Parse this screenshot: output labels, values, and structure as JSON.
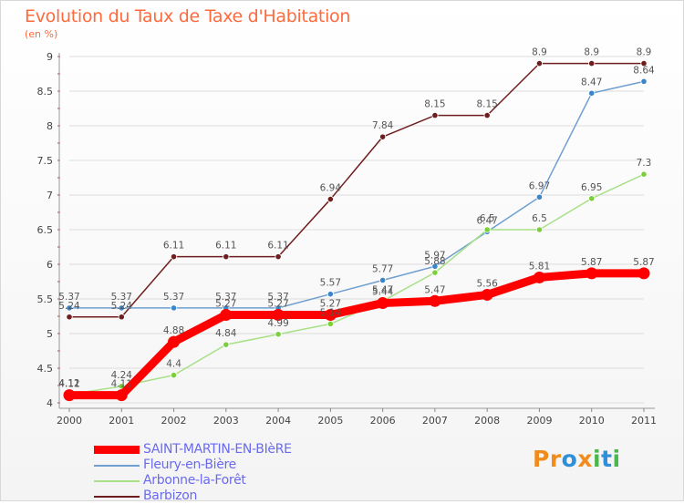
{
  "header": {
    "title": "Evolution du Taux de Taxe d'Habitation",
    "unit": "(en %)"
  },
  "logo": {
    "text": "Proxiti",
    "letters": [
      "P",
      "r",
      "o",
      "x",
      "i",
      "t",
      "i"
    ],
    "colors": [
      "#f08c1e",
      "#f08c1e",
      "#2f8fd8",
      "#f08c1e",
      "#4bb84b",
      "#2f8fd8",
      "#4bb84b"
    ]
  },
  "chart_data": {
    "type": "line",
    "title": "Evolution du Taux de Taxe d'Habitation",
    "ylabel": "(en %)",
    "xlabel": "",
    "x": [
      "2000",
      "2001",
      "2002",
      "2003",
      "2004",
      "2005",
      "2006",
      "2007",
      "2008",
      "2009",
      "2010",
      "2011"
    ],
    "ylim": [
      4,
      9
    ],
    "yticks": [
      "4",
      "4.5",
      "5",
      "5.5",
      "6",
      "6.5",
      "7",
      "7.5",
      "8",
      "8.5",
      "9"
    ],
    "grid": "horizontal",
    "legend_position": "bottom-left",
    "series": [
      {
        "name": "Barbizon",
        "color": "#6e1e1e",
        "marker": "#6e1e1e",
        "values": [
          5.24,
          5.24,
          6.11,
          6.11,
          6.11,
          6.94,
          7.84,
          8.15,
          8.15,
          8.9,
          8.9,
          8.9
        ],
        "labels": [
          "5.24",
          "5.24",
          "6.11",
          "6.11",
          "6.11",
          "6.94",
          "7.84",
          "8.15",
          "8.15",
          "8.9",
          "8.9",
          "8.9"
        ]
      },
      {
        "name": "Fleury-en-Bière",
        "color": "#6f9fd0",
        "marker": "#3b86c8",
        "values": [
          5.37,
          5.37,
          5.37,
          5.37,
          5.37,
          5.57,
          5.77,
          5.97,
          6.47,
          6.97,
          8.47,
          8.64
        ],
        "labels": [
          "5.37",
          "5.37",
          "5.37",
          "5.37",
          "5.37",
          "5.57",
          "5.77",
          "5.97",
          "6.47",
          "6.97",
          "8.47",
          "8.64"
        ]
      },
      {
        "name": "Arbonne-la-Forêt",
        "color": "#a8e088",
        "marker": "#7ccf3c",
        "values": [
          4.12,
          4.24,
          4.4,
          4.84,
          4.99,
          5.14,
          5.47,
          5.88,
          6.5,
          6.5,
          6.95,
          7.3
        ],
        "labels": [
          "4.12",
          "4.24",
          "4.4",
          "4.84",
          "4.99",
          "5.14",
          "5.47",
          "5.88",
          "6.5",
          "6.5",
          "6.95",
          "7.3"
        ]
      },
      {
        "name": "SAINT-MARTIN-EN-BIèRE",
        "color": "#ff0000",
        "marker": "#ff0000",
        "values": [
          4.11,
          4.11,
          4.88,
          5.27,
          5.27,
          5.27,
          5.44,
          5.47,
          5.56,
          5.81,
          5.87,
          5.87
        ],
        "labels": [
          "4.11",
          "4.11",
          "4.88",
          "5.27",
          "5.27",
          "5.27",
          "5.44",
          "5.47",
          "5.56",
          "5.81",
          "5.87",
          "5.87"
        ]
      }
    ],
    "legend": [
      {
        "name": "SAINT-MARTIN-EN-BIèRE",
        "color": "#ff0000",
        "thick": true
      },
      {
        "name": "Fleury-en-Bière",
        "color": "#6f9fd0",
        "thick": false
      },
      {
        "name": "Arbonne-la-Forêt",
        "color": "#a8e088",
        "thick": false
      },
      {
        "name": "Barbizon",
        "color": "#6e1e1e",
        "thick": false
      }
    ]
  }
}
